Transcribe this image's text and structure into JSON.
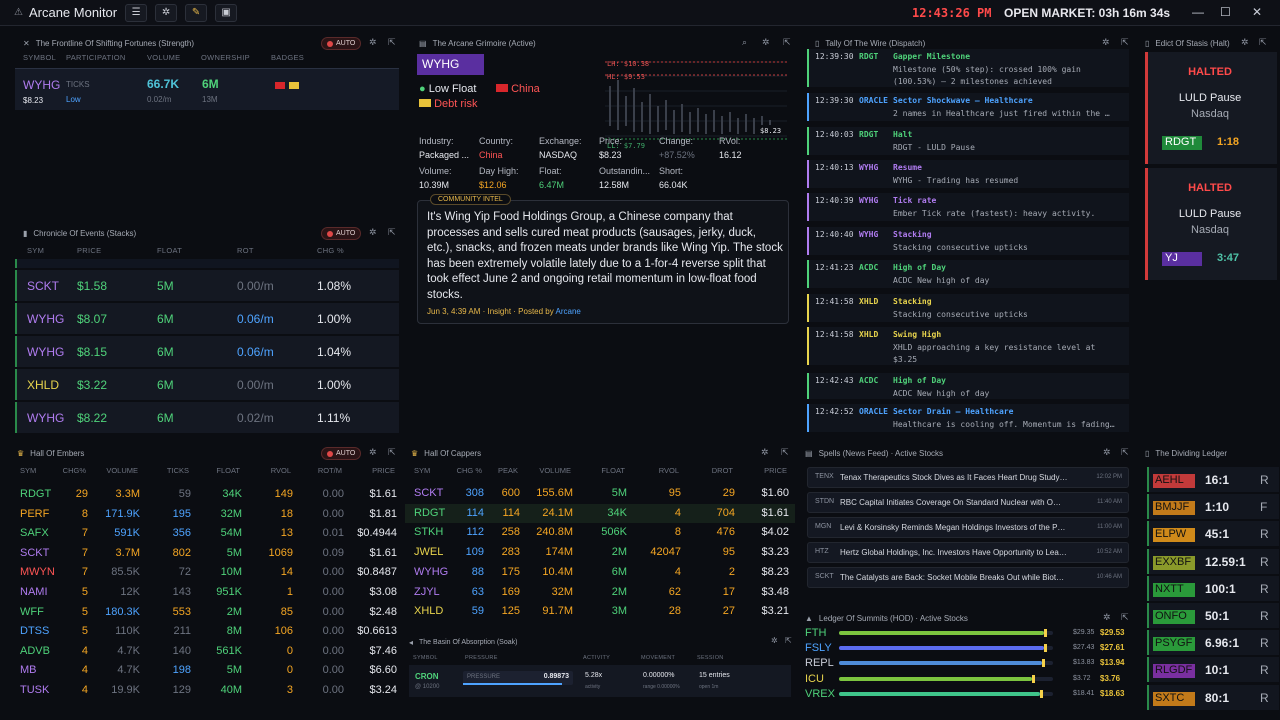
{
  "app": {
    "title": "Arcane Monitor",
    "clock": "12:43:26 PM",
    "market": "OPEN MARKET: 03h 16m 34s"
  },
  "frontline": {
    "title": "The Frontline Of Shifting Fortunes (Strength)",
    "auto": "AUTO",
    "cols": [
      "SYMBOL",
      "PARTICIPATION",
      "VOLUME",
      "OWNERSHIP",
      "BADGES"
    ],
    "sym": "WYHG",
    "price": "$8.23",
    "ticks_label": "TICKS",
    "ticks_sub": "Low",
    "volume": "66.7K",
    "volume_sub": "0.02/m",
    "own": "6M",
    "own_sub": "13M"
  },
  "chronicle": {
    "title": "Chronicle Of Events (Stacks)",
    "auto": "AUTO",
    "cols": [
      "SYM",
      "PRICE",
      "FLOAT",
      "ROT",
      "CHG %"
    ],
    "rows": [
      {
        "sym": "SCKT",
        "price": "$1.58",
        "float": "5M",
        "rot": "0.00/m",
        "chg": "1.08%",
        "sc": "pur",
        "rc": "gry"
      },
      {
        "sym": "WYHG",
        "price": "$8.07",
        "float": "6M",
        "rot": "0.06/m",
        "chg": "1.00%",
        "sc": "pur",
        "rc": "blu"
      },
      {
        "sym": "WYHG",
        "price": "$8.15",
        "float": "6M",
        "rot": "0.06/m",
        "chg": "1.04%",
        "sc": "pur",
        "rc": "blu"
      },
      {
        "sym": "XHLD",
        "price": "$3.22",
        "float": "6M",
        "rot": "0.00/m",
        "chg": "1.00%",
        "sc": "yel",
        "rc": "gry"
      },
      {
        "sym": "WYHG",
        "price": "$8.22",
        "float": "6M",
        "rot": "0.02/m",
        "chg": "1.11%",
        "sc": "pur",
        "rc": "gry"
      }
    ]
  },
  "grimoire": {
    "title": "The Arcane Grimoire (Active)",
    "sym": "WYHG",
    "tag1": "Low Float",
    "tag2": "China",
    "tag3": "Debt risk",
    "chart_labels": {
      "hod": "LH: $10.38",
      "hl": "HL: $9.53",
      "ll": "LL: $7.79",
      "last": "$8.23"
    },
    "fields": [
      {
        "k": "Industry:",
        "v": "Packaged ...",
        "c": "wht"
      },
      {
        "k": "Country:",
        "v": "China",
        "c": "red"
      },
      {
        "k": "Exchange:",
        "v": "NASDAQ",
        "c": "wht"
      },
      {
        "k": "Price:",
        "v": "$8.23",
        "c": "wht"
      },
      {
        "k": "Change:",
        "v": "+87.52%",
        "c": "gry"
      },
      {
        "k": "RVol:",
        "v": "16.12",
        "c": "wht"
      },
      {
        "k": "Volume:",
        "v": "10.39M",
        "c": "wht"
      },
      {
        "k": "Day High:",
        "v": "$12.06",
        "c": "org"
      },
      {
        "k": "Float:",
        "v": "6.47M",
        "c": "grn"
      },
      {
        "k": "Outstandin...",
        "v": "12.58M",
        "c": "wht"
      },
      {
        "k": "Short:",
        "v": "66.04K",
        "c": "wht"
      }
    ],
    "intel_label": "COMMUNITY INTEL",
    "intel_text": "It's Wing Yip Food Holdings Group, a Chinese company that processes and sells cured meat products (sausages, jerky, duck, etc.), snacks, and frozen meats under brands like Wing Yip. The stock has been extremely volatile lately due to a 1-for-4 reverse split that took effect June 2 and ongoing retail momentum in low-float food stocks.",
    "intel_meta": "Jun 3, 4:39 AM · Insight · Posted by",
    "intel_author": "Arcane"
  },
  "wire": {
    "title": "Tally Of The Wire (Dispatch)",
    "rows": [
      {
        "t": "12:39:30",
        "s": "RDGT",
        "sc": "grn",
        "h": "Gapper Milestone",
        "d1": "Milestone (50% step): crossed 100% gain",
        "d2": "(100.53%) — 2 milestones achieved",
        "bc": "#4fd27a"
      },
      {
        "t": "12:39:30",
        "s": "ORACLE",
        "sc": "blu",
        "h": "Sector Shockwave — Healthcare",
        "d1": "2 names in Healthcare just fired within the …",
        "d2": "",
        "bc": "#4ea3ff"
      },
      {
        "t": "12:40:03",
        "s": "RDGT",
        "sc": "grn",
        "h": "Halt",
        "d1": "RDGT - LULD Pause",
        "d2": "",
        "bc": "#4fd27a"
      },
      {
        "t": "12:40:13",
        "s": "WYHG",
        "sc": "pur",
        "h": "Resume",
        "d1": "WYHG - Trading has resumed",
        "d2": "",
        "bc": "#b07cf0"
      },
      {
        "t": "12:40:39",
        "s": "WYHG",
        "sc": "pur",
        "h": "Tick rate",
        "d1": "Ember Tick rate (fastest): heavy activity.",
        "d2": "",
        "bc": "#b07cf0"
      },
      {
        "t": "12:40:40",
        "s": "WYHG",
        "sc": "pur",
        "h": "Stacking",
        "d1": "Stacking consecutive upticks",
        "d2": "",
        "bc": "#b07cf0"
      },
      {
        "t": "12:41:23",
        "s": "ACDC",
        "sc": "grn",
        "h": "High of Day",
        "d1": "ACDC New high of day",
        "d2": "",
        "bc": "#4fd27a"
      },
      {
        "t": "12:41:58",
        "s": "XHLD",
        "sc": "yel",
        "h": "Stacking",
        "d1": "Stacking consecutive upticks",
        "d2": "",
        "bc": "#e8d44d"
      },
      {
        "t": "12:41:58",
        "s": "XHLD",
        "sc": "yel",
        "h": "Swing High",
        "d1": "XHLD approaching a key resistance level at",
        "d2": "$3.25",
        "bc": "#e8d44d"
      },
      {
        "t": "12:42:43",
        "s": "ACDC",
        "sc": "grn",
        "h": "High of Day",
        "d1": "ACDC New high of day",
        "d2": "",
        "bc": "#4fd27a"
      },
      {
        "t": "12:42:52",
        "s": "ORACLE",
        "sc": "blu",
        "h": "Sector Drain — Healthcare",
        "d1": "Healthcare is cooling off. Momentum is fading…",
        "d2": "",
        "bc": "#4ea3ff"
      }
    ]
  },
  "stasis": {
    "title": "Edict Of Stasis (Halt)",
    "cards": [
      {
        "status": "HALTED",
        "reason": "LULD Pause",
        "exch": "Nasdaq",
        "sym": "RDGT",
        "timer": "1:18",
        "symbg": "#1f8a3a",
        "tc": "#f5a623"
      },
      {
        "status": "HALTED",
        "reason": "LULD Pause",
        "exch": "Nasdaq",
        "sym": "YJ",
        "timer": "3:47",
        "symbg": "#5a2fa0",
        "tc": "#4fc3a8"
      }
    ]
  },
  "embers": {
    "title": "Hall Of Embers",
    "auto": "AUTO",
    "cols": [
      "SYM",
      "CHG%",
      "VOLUME",
      "TICKS",
      "FLOAT",
      "RVOL",
      "ROT/M",
      "PRICE"
    ],
    "rows": [
      {
        "sym": "RDGT",
        "sc": "grn",
        "chg": "29",
        "vol": "3.3M",
        "vc": "org",
        "tk": "59",
        "tc": "gry",
        "fl": "34K",
        "rv": "149",
        "rt": "0.00",
        "pr": "$1.61"
      },
      {
        "sym": "PERF",
        "sc": "org",
        "chg": "8",
        "vol": "171.9K",
        "vc": "blu",
        "tk": "195",
        "tc": "blu",
        "fl": "32M",
        "rv": "18",
        "rt": "0.00",
        "pr": "$1.81"
      },
      {
        "sym": "SAFX",
        "sc": "grn",
        "chg": "7",
        "vol": "591K",
        "vc": "blu",
        "tk": "356",
        "tc": "blu",
        "fl": "54M",
        "rv": "13",
        "rt": "0.01",
        "pr": "$0.4944"
      },
      {
        "sym": "SCKT",
        "sc": "pur",
        "chg": "7",
        "vol": "3.7M",
        "vc": "org",
        "tk": "802",
        "tc": "org",
        "fl": "5M",
        "rv": "1069",
        "rt": "0.09",
        "pr": "$1.61"
      },
      {
        "sym": "MWYN",
        "sc": "red",
        "chg": "7",
        "vol": "85.5K",
        "vc": "gry",
        "tk": "72",
        "tc": "gry",
        "fl": "10M",
        "rv": "14",
        "rt": "0.00",
        "pr": "$0.8487"
      },
      {
        "sym": "NAMI",
        "sc": "pur",
        "chg": "5",
        "vol": "12K",
        "vc": "gry",
        "tk": "143",
        "tc": "gry",
        "fl": "951K",
        "rv": "1",
        "rt": "0.00",
        "pr": "$3.08"
      },
      {
        "sym": "WFF",
        "sc": "grn",
        "chg": "5",
        "vol": "180.3K",
        "vc": "blu",
        "tk": "553",
        "tc": "org",
        "fl": "2M",
        "rv": "85",
        "rt": "0.00",
        "pr": "$2.48"
      },
      {
        "sym": "DTSS",
        "sc": "blu",
        "chg": "5",
        "vol": "110K",
        "vc": "gry",
        "tk": "211",
        "tc": "gry",
        "fl": "8M",
        "rv": "106",
        "rt": "0.00",
        "pr": "$0.6613"
      },
      {
        "sym": "ADVB",
        "sc": "grn",
        "chg": "4",
        "vol": "4.7K",
        "vc": "gry",
        "tk": "140",
        "tc": "gry",
        "fl": "561K",
        "rv": "0",
        "rt": "0.00",
        "pr": "$7.46"
      },
      {
        "sym": "MB",
        "sc": "pur",
        "chg": "4",
        "vol": "4.7K",
        "vc": "gry",
        "tk": "198",
        "tc": "blu",
        "fl": "5M",
        "rv": "0",
        "rt": "0.00",
        "pr": "$6.60"
      },
      {
        "sym": "TUSK",
        "sc": "pur",
        "chg": "4",
        "vol": "19.9K",
        "vc": "gry",
        "tk": "129",
        "tc": "gry",
        "fl": "40M",
        "rv": "3",
        "rt": "0.00",
        "pr": "$3.24"
      }
    ]
  },
  "cappers": {
    "title": "Hall Of Cappers",
    "cols": [
      "SYM",
      "CHG %",
      "PEAK",
      "VOLUME",
      "FLOAT",
      "RVOL",
      "DROT",
      "PRICE"
    ],
    "rows": [
      {
        "sym": "SCKT",
        "sc": "pur",
        "chg": "308",
        "pk": "600",
        "vol": "155.6M",
        "fl": "5M",
        "rv": "95",
        "dr": "29",
        "pr": "$1.60"
      },
      {
        "sym": "RDGT",
        "sc": "grn",
        "chg": "114",
        "pk": "114",
        "vol": "24.1M",
        "fl": "34K",
        "rv": "4",
        "dr": "704",
        "pr": "$1.61"
      },
      {
        "sym": "STKH",
        "sc": "grn",
        "chg": "112",
        "pk": "258",
        "vol": "240.8M",
        "fl": "506K",
        "rv": "8",
        "dr": "476",
        "pr": "$4.02"
      },
      {
        "sym": "JWEL",
        "sc": "yel",
        "chg": "109",
        "pk": "283",
        "vol": "174M",
        "fl": "2M",
        "rv": "42047",
        "dr": "95",
        "pr": "$3.23"
      },
      {
        "sym": "WYHG",
        "sc": "pur",
        "chg": "88",
        "pk": "175",
        "vol": "10.4M",
        "fl": "6M",
        "rv": "4",
        "dr": "2",
        "pr": "$8.23"
      },
      {
        "sym": "ZJYL",
        "sc": "pur",
        "chg": "63",
        "pk": "169",
        "vol": "32M",
        "fl": "2M",
        "rv": "62",
        "dr": "17",
        "pr": "$3.48"
      },
      {
        "sym": "XHLD",
        "sc": "yel",
        "chg": "59",
        "pk": "125",
        "vol": "91.7M",
        "fl": "3M",
        "rv": "28",
        "dr": "27",
        "pr": "$3.21"
      }
    ]
  },
  "soak": {
    "title": "The Basin Of Absorption (Soak)",
    "cols": [
      "SYMBOL",
      "PRESSURE",
      "ACTIVITY",
      "MOVEMENT",
      "SESSION"
    ],
    "sym": "CRON",
    "sym_sub": "@ 10200",
    "pressure_label": "PRESSURE",
    "pressure": "0.89873",
    "activity": "5.28x",
    "activity_sub": "activity",
    "movement": "0.00000%",
    "movement_sub": "range 0.00000%",
    "session": "15 entries",
    "session_sub": "open 1m"
  },
  "news": {
    "title": "Spells (News Feed) · Active Stocks",
    "rows": [
      {
        "sym": "TENX",
        "text": "Tenax Therapeutics Stock Dives as It Faces Heart Drug Study…",
        "time": "12:02 PM"
      },
      {
        "sym": "STDN",
        "text": "RBC Capital Initiates Coverage On Standard Nuclear with O…",
        "time": "11:40 AM"
      },
      {
        "sym": "MGN",
        "text": "Levi & Korsinsky Reminds Megan Holdings Investors of the P…",
        "time": "11:00 AM"
      },
      {
        "sym": "HTZ",
        "text": "Hertz Global Holdings, Inc. Investors Have Opportunity to Lea…",
        "time": "10:52 AM"
      },
      {
        "sym": "SCKT",
        "text": "The Catalysts are Back: Socket Mobile Breaks Out while Biot…",
        "time": "10:46 AM"
      }
    ]
  },
  "summits": {
    "title": "Ledger Of Summits (HOD) · Active Stocks",
    "rows": [
      {
        "sym": "FTH",
        "sc": "#4fd27a",
        "lo": "$29.35",
        "hi": "$29.53",
        "fill": 0.96,
        "bar": "#7cc43f"
      },
      {
        "sym": "FSLY",
        "sc": "#4ea3ff",
        "lo": "$27.43",
        "hi": "$27.61",
        "fill": 0.96,
        "bar": "#5b6cf0"
      },
      {
        "sym": "REPL",
        "sc": "#c8ccd6",
        "lo": "$13.83",
        "hi": "$13.94",
        "fill": 0.95,
        "bar": "#4e8bd8"
      },
      {
        "sym": "ICU",
        "sc": "#e8d44d",
        "lo": "$3.72",
        "hi": "$3.76",
        "fill": 0.9,
        "bar": "#7cc43f"
      },
      {
        "sym": "VREX",
        "sc": "#4fd27a",
        "lo": "$18.41",
        "hi": "$18.63",
        "fill": 0.94,
        "bar": "#3fc48a"
      }
    ]
  },
  "ledger": {
    "title": "The Dividing Ledger",
    "rows": [
      {
        "sym": "AEHL",
        "bg": "#c23a3a",
        "ratio": "16:1",
        "t": "R"
      },
      {
        "sym": "BMJJF",
        "bg": "#c27a1a",
        "ratio": "1:10",
        "t": "F"
      },
      {
        "sym": "ELPW",
        "bg": "#d08a1a",
        "ratio": "45:1",
        "t": "R"
      },
      {
        "sym": "EXXBF",
        "bg": "#8a9a2a",
        "ratio": "12.59:1",
        "t": "R"
      },
      {
        "sym": "NXTT",
        "bg": "#2a9a3a",
        "ratio": "100:1",
        "t": "R"
      },
      {
        "sym": "ONFO",
        "bg": "#2a9a3a",
        "ratio": "50:1",
        "t": "R"
      },
      {
        "sym": "PSYGF",
        "bg": "#2a9a3a",
        "ratio": "6.96:1",
        "t": "R"
      },
      {
        "sym": "RLGDF",
        "bg": "#7a2fa0",
        "ratio": "10:1",
        "t": "R"
      },
      {
        "sym": "SXTC",
        "bg": "#c27a1a",
        "ratio": "80:1",
        "t": "R"
      }
    ]
  }
}
